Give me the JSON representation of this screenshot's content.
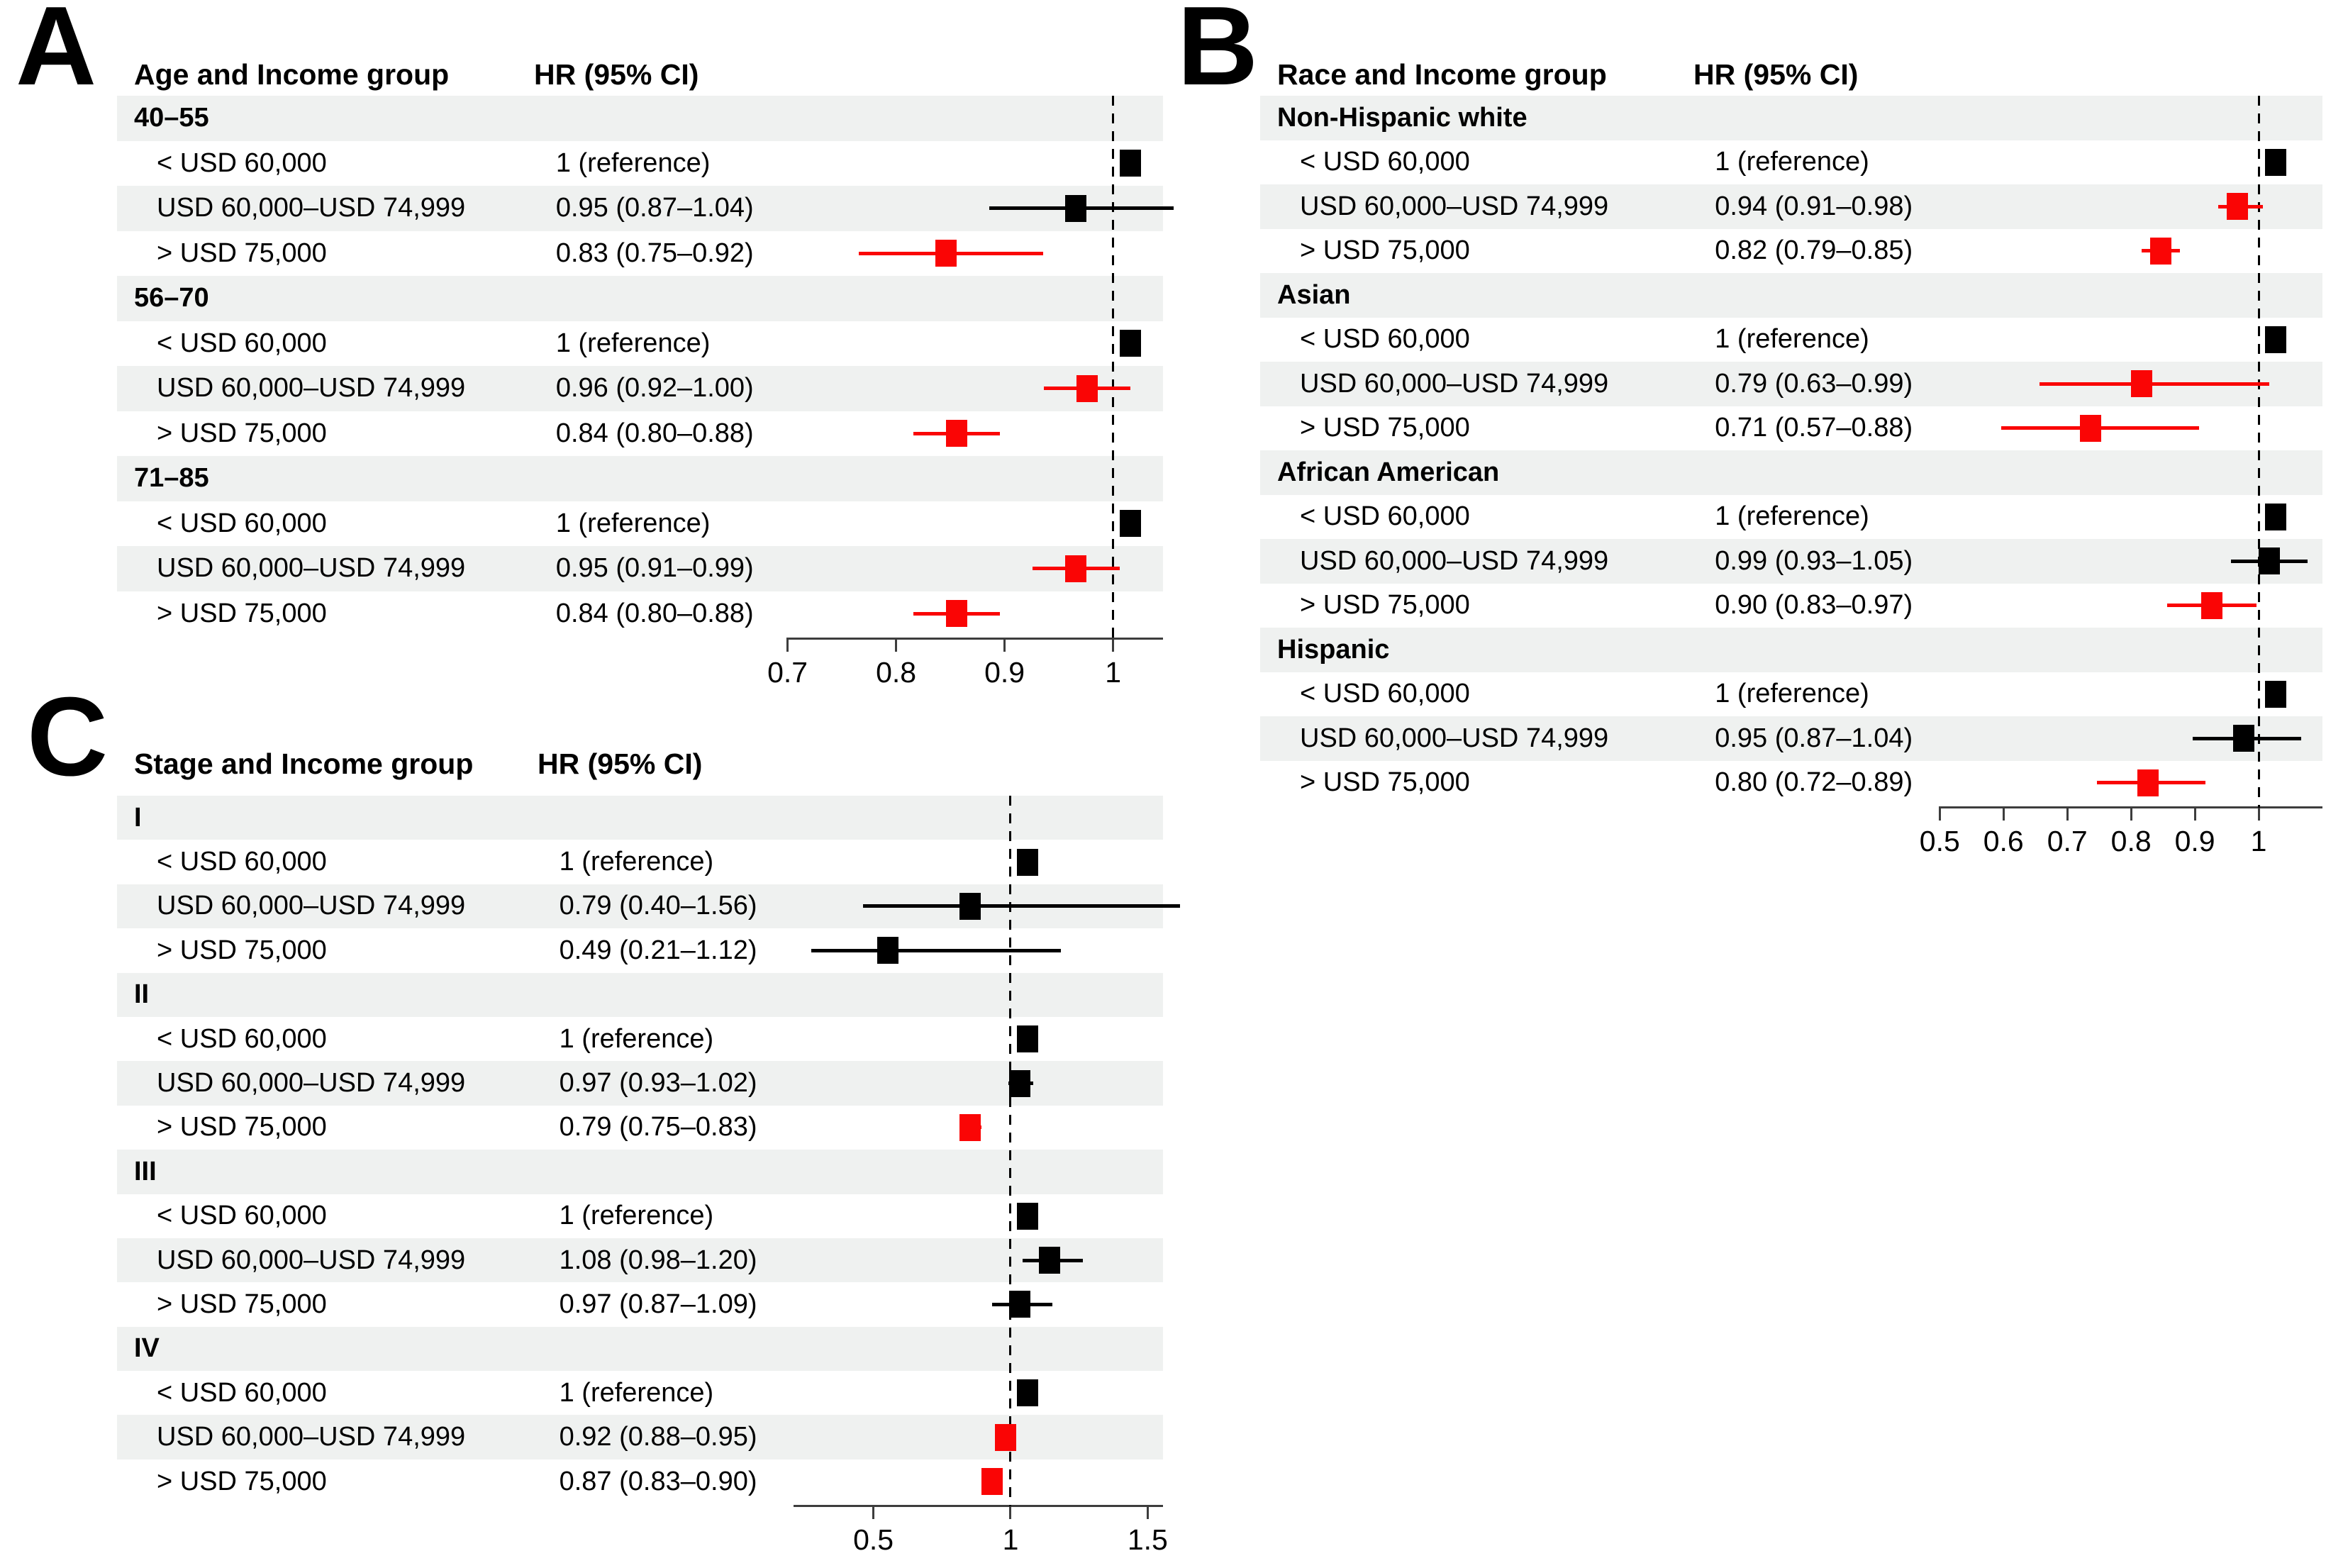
{
  "figure": {
    "colors": {
      "significant_marker": "#fa0505",
      "nonsignificant_marker": "#000000",
      "row_stripe": "#eff1f0",
      "axis_line": "#3d3d3d",
      "reference_dash": "#000000"
    }
  },
  "chart_data": [
    {
      "type": "forest",
      "panel": "A",
      "title": "Age and Income group",
      "hr_header": "HR (95% CI)",
      "axis": {
        "min": 0.68,
        "max": 1.046,
        "ticks": [
          0.7,
          0.8,
          0.9,
          1
        ],
        "tick_labels": [
          "0.7",
          "0.8",
          "0.9",
          "1"
        ],
        "reference_line": 1,
        "baseline_from": 0.7
      },
      "rows": [
        {
          "type": "group",
          "label": "40–55"
        },
        {
          "type": "item",
          "label": "< USD 60,000",
          "hr_text": "1 (reference)",
          "hr": 1,
          "reference": true
        },
        {
          "type": "item",
          "label": "USD 60,000–USD 74,999",
          "hr_text": "0.95 (0.87–1.04)",
          "hr": 0.95,
          "lo": 0.87,
          "hi": 1.04,
          "significant": false
        },
        {
          "type": "item",
          "label": "> USD 75,000",
          "hr_text": "0.83 (0.75–0.92)",
          "hr": 0.83,
          "lo": 0.75,
          "hi": 0.92,
          "significant": true
        },
        {
          "type": "group",
          "label": "56–70"
        },
        {
          "type": "item",
          "label": "< USD 60,000",
          "hr_text": "1 (reference)",
          "hr": 1,
          "reference": true
        },
        {
          "type": "item",
          "label": "USD 60,000–USD 74,999",
          "hr_text": "0.96 (0.92–1.00)",
          "hr": 0.96,
          "lo": 0.92,
          "hi": 1.0,
          "significant": true
        },
        {
          "type": "item",
          "label": "> USD 75,000",
          "hr_text": "0.84 (0.80–0.88)",
          "hr": 0.84,
          "lo": 0.8,
          "hi": 0.88,
          "significant": true
        },
        {
          "type": "group",
          "label": "71–85"
        },
        {
          "type": "item",
          "label": "< USD 60,000",
          "hr_text": "1 (reference)",
          "hr": 1,
          "reference": true
        },
        {
          "type": "item",
          "label": "USD 60,000–USD 74,999",
          "hr_text": "0.95 (0.91–0.99)",
          "hr": 0.95,
          "lo": 0.91,
          "hi": 0.99,
          "significant": true
        },
        {
          "type": "item",
          "label": "> USD 75,000",
          "hr_text": "0.84 (0.80–0.88)",
          "hr": 0.84,
          "lo": 0.8,
          "hi": 0.88,
          "significant": true
        }
      ]
    },
    {
      "type": "forest",
      "panel": "B",
      "title": "Race and Income group",
      "hr_header": "HR (95% CI)",
      "axis": {
        "min": 0.483,
        "max": 1.1,
        "ticks": [
          0.5,
          0.6,
          0.7,
          0.8,
          0.9,
          1
        ],
        "tick_labels": [
          "0.5",
          "0.6",
          "0.7",
          "0.8",
          "0.9",
          "1"
        ],
        "reference_line": 1,
        "baseline_from": 0.5
      },
      "rows": [
        {
          "type": "group",
          "label": "Non-Hispanic white"
        },
        {
          "type": "item",
          "label": "< USD 60,000",
          "hr_text": "1 (reference)",
          "hr": 1,
          "reference": true
        },
        {
          "type": "item",
          "label": "USD 60,000–USD 74,999",
          "hr_text": "0.94 (0.91–0.98)",
          "hr": 0.94,
          "lo": 0.91,
          "hi": 0.98,
          "significant": true
        },
        {
          "type": "item",
          "label": "> USD 75,000",
          "hr_text": "0.82 (0.79–0.85)",
          "hr": 0.82,
          "lo": 0.79,
          "hi": 0.85,
          "significant": true
        },
        {
          "type": "group",
          "label": "Asian"
        },
        {
          "type": "item",
          "label": "< USD 60,000",
          "hr_text": "1 (reference)",
          "hr": 1,
          "reference": true
        },
        {
          "type": "item",
          "label": "USD 60,000–USD 74,999",
          "hr_text": "0.79 (0.63–0.99)",
          "hr": 0.79,
          "lo": 0.63,
          "hi": 0.99,
          "significant": true
        },
        {
          "type": "item",
          "label": "> USD 75,000",
          "hr_text": "0.71 (0.57–0.88)",
          "hr": 0.71,
          "lo": 0.57,
          "hi": 0.88,
          "significant": true
        },
        {
          "type": "group",
          "label": "African American"
        },
        {
          "type": "item",
          "label": "< USD 60,000",
          "hr_text": "1 (reference)",
          "hr": 1,
          "reference": true
        },
        {
          "type": "item",
          "label": "USD 60,000–USD 74,999",
          "hr_text": "0.99 (0.93–1.05)",
          "hr": 0.99,
          "lo": 0.93,
          "hi": 1.05,
          "significant": false
        },
        {
          "type": "item",
          "label": "> USD 75,000",
          "hr_text": "0.90 (0.83–0.97)",
          "hr": 0.9,
          "lo": 0.83,
          "hi": 0.97,
          "significant": true
        },
        {
          "type": "group",
          "label": "Hispanic"
        },
        {
          "type": "item",
          "label": "< USD 60,000",
          "hr_text": "1 (reference)",
          "hr": 1,
          "reference": true
        },
        {
          "type": "item",
          "label": "USD 60,000–USD 74,999",
          "hr_text": "0.95 (0.87–1.04)",
          "hr": 0.95,
          "lo": 0.87,
          "hi": 1.04,
          "significant": false
        },
        {
          "type": "item",
          "label": "> USD 75,000",
          "hr_text": "0.80 (0.72–0.89)",
          "hr": 0.8,
          "lo": 0.72,
          "hi": 0.89,
          "significant": true
        }
      ]
    },
    {
      "type": "forest",
      "panel": "C",
      "title": "Stage and Income group",
      "hr_header": "HR (95% CI)",
      "axis": {
        "min": 0.108,
        "max": 1.556,
        "ticks": [
          0.5,
          1,
          1.5
        ],
        "tick_labels": [
          "0.5",
          "1",
          "1.5"
        ],
        "reference_line": 1,
        "baseline_from": 0.21
      },
      "rows": [
        {
          "type": "group",
          "label": "I"
        },
        {
          "type": "item",
          "label": "< USD 60,000",
          "hr_text": "1 (reference)",
          "hr": 1,
          "reference": true
        },
        {
          "type": "item",
          "label": "USD 60,000–USD 74,999",
          "hr_text": "0.79 (0.40–1.56)",
          "hr": 0.79,
          "lo": 0.4,
          "hi": 1.56,
          "significant": false
        },
        {
          "type": "item",
          "label": "> USD 75,000",
          "hr_text": "0.49 (0.21–1.12)",
          "hr": 0.49,
          "lo": 0.21,
          "hi": 1.12,
          "significant": false
        },
        {
          "type": "group",
          "label": "II"
        },
        {
          "type": "item",
          "label": "< USD 60,000",
          "hr_text": "1 (reference)",
          "hr": 1,
          "reference": true
        },
        {
          "type": "item",
          "label": "USD 60,000–USD 74,999",
          "hr_text": "0.97 (0.93–1.02)",
          "hr": 0.97,
          "lo": 0.93,
          "hi": 1.02,
          "significant": false
        },
        {
          "type": "item",
          "label": "> USD 75,000",
          "hr_text": "0.79 (0.75–0.83)",
          "hr": 0.79,
          "lo": 0.75,
          "hi": 0.83,
          "significant": true
        },
        {
          "type": "group",
          "label": "III"
        },
        {
          "type": "item",
          "label": "< USD 60,000",
          "hr_text": "1 (reference)",
          "hr": 1,
          "reference": true
        },
        {
          "type": "item",
          "label": "USD 60,000–USD 74,999",
          "hr_text": "1.08 (0.98–1.20)",
          "hr": 1.08,
          "lo": 0.98,
          "hi": 1.2,
          "significant": false
        },
        {
          "type": "item",
          "label": "> USD 75,000",
          "hr_text": "0.97 (0.87–1.09)",
          "hr": 0.97,
          "lo": 0.87,
          "hi": 1.09,
          "significant": false
        },
        {
          "type": "group",
          "label": "IV"
        },
        {
          "type": "item",
          "label": "< USD 60,000",
          "hr_text": "1 (reference)",
          "hr": 1,
          "reference": true
        },
        {
          "type": "item",
          "label": "USD 60,000–USD 74,999",
          "hr_text": "0.92 (0.88–0.95)",
          "hr": 0.92,
          "lo": 0.88,
          "hi": 0.95,
          "significant": true
        },
        {
          "type": "item",
          "label": "> USD 75,000",
          "hr_text": "0.87 (0.83–0.90)",
          "hr": 0.87,
          "lo": 0.83,
          "hi": 0.9,
          "significant": true
        }
      ]
    }
  ]
}
